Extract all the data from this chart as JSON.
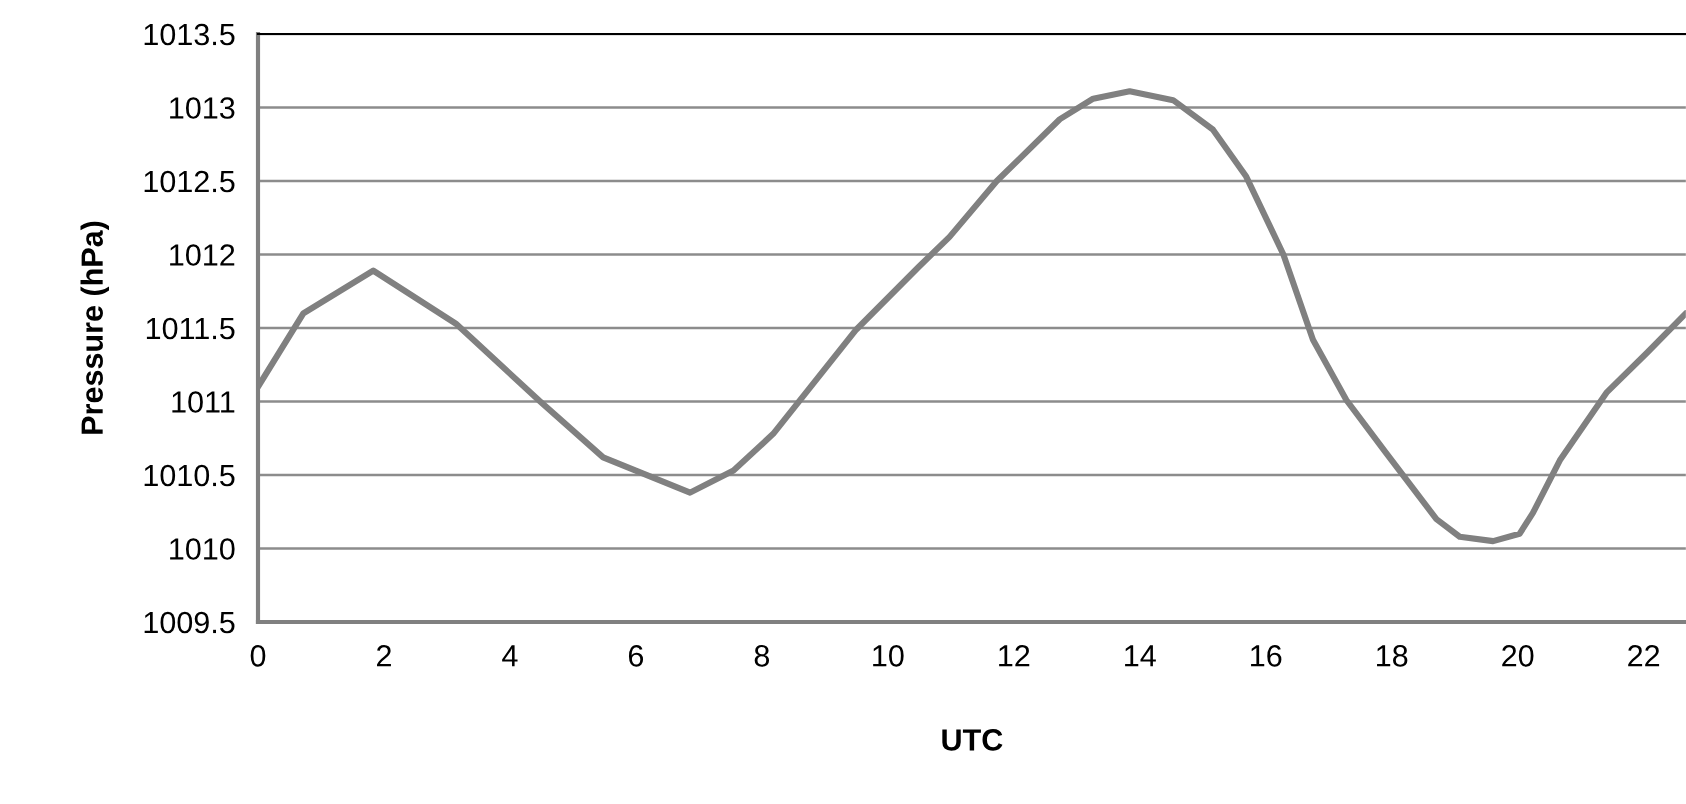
{
  "chart_data": {
    "type": "line",
    "xlabel": "UTC",
    "ylabel": "Pressure (hPa)",
    "xlim": [
      0,
      22.67
    ],
    "xticks": [
      0,
      2,
      4,
      6,
      8,
      10,
      12,
      14,
      16,
      18,
      20,
      22
    ],
    "ylim": [
      1009.5,
      1013.5
    ],
    "yticks": [
      1009.5,
      1010,
      1010.5,
      1011,
      1011.5,
      1012,
      1012.5,
      1013,
      1013.5
    ],
    "grid": "y",
    "marker": "none",
    "line_style": "solid",
    "series": [
      {
        "color": "#808080",
        "x": [
          0,
          0.72,
          1.83,
          3.14,
          4.48,
          5.48,
          6.86,
          7.55,
          8.18,
          9.5,
          10.5,
          10.98,
          11.73,
          12.73,
          13.26,
          13.84,
          14.53,
          15.16,
          15.69,
          16.28,
          16.75,
          17.28,
          17.91,
          18.71,
          19.08,
          19.61,
          20.03,
          20.24,
          20.67,
          21.41,
          22.05,
          22.67
        ],
        "values": [
          1011.1,
          1011.6,
          1011.89,
          1011.53,
          1011.0,
          1010.62,
          1010.38,
          1010.53,
          1010.78,
          1011.49,
          1011.92,
          1012.12,
          1012.5,
          1012.92,
          1013.06,
          1013.11,
          1013.05,
          1012.85,
          1012.53,
          1012.0,
          1011.42,
          1011.01,
          1010.65,
          1010.2,
          1010.08,
          1010.05,
          1010.1,
          1010.24,
          1010.6,
          1011.06,
          1011.33,
          1011.6
        ]
      }
    ]
  }
}
